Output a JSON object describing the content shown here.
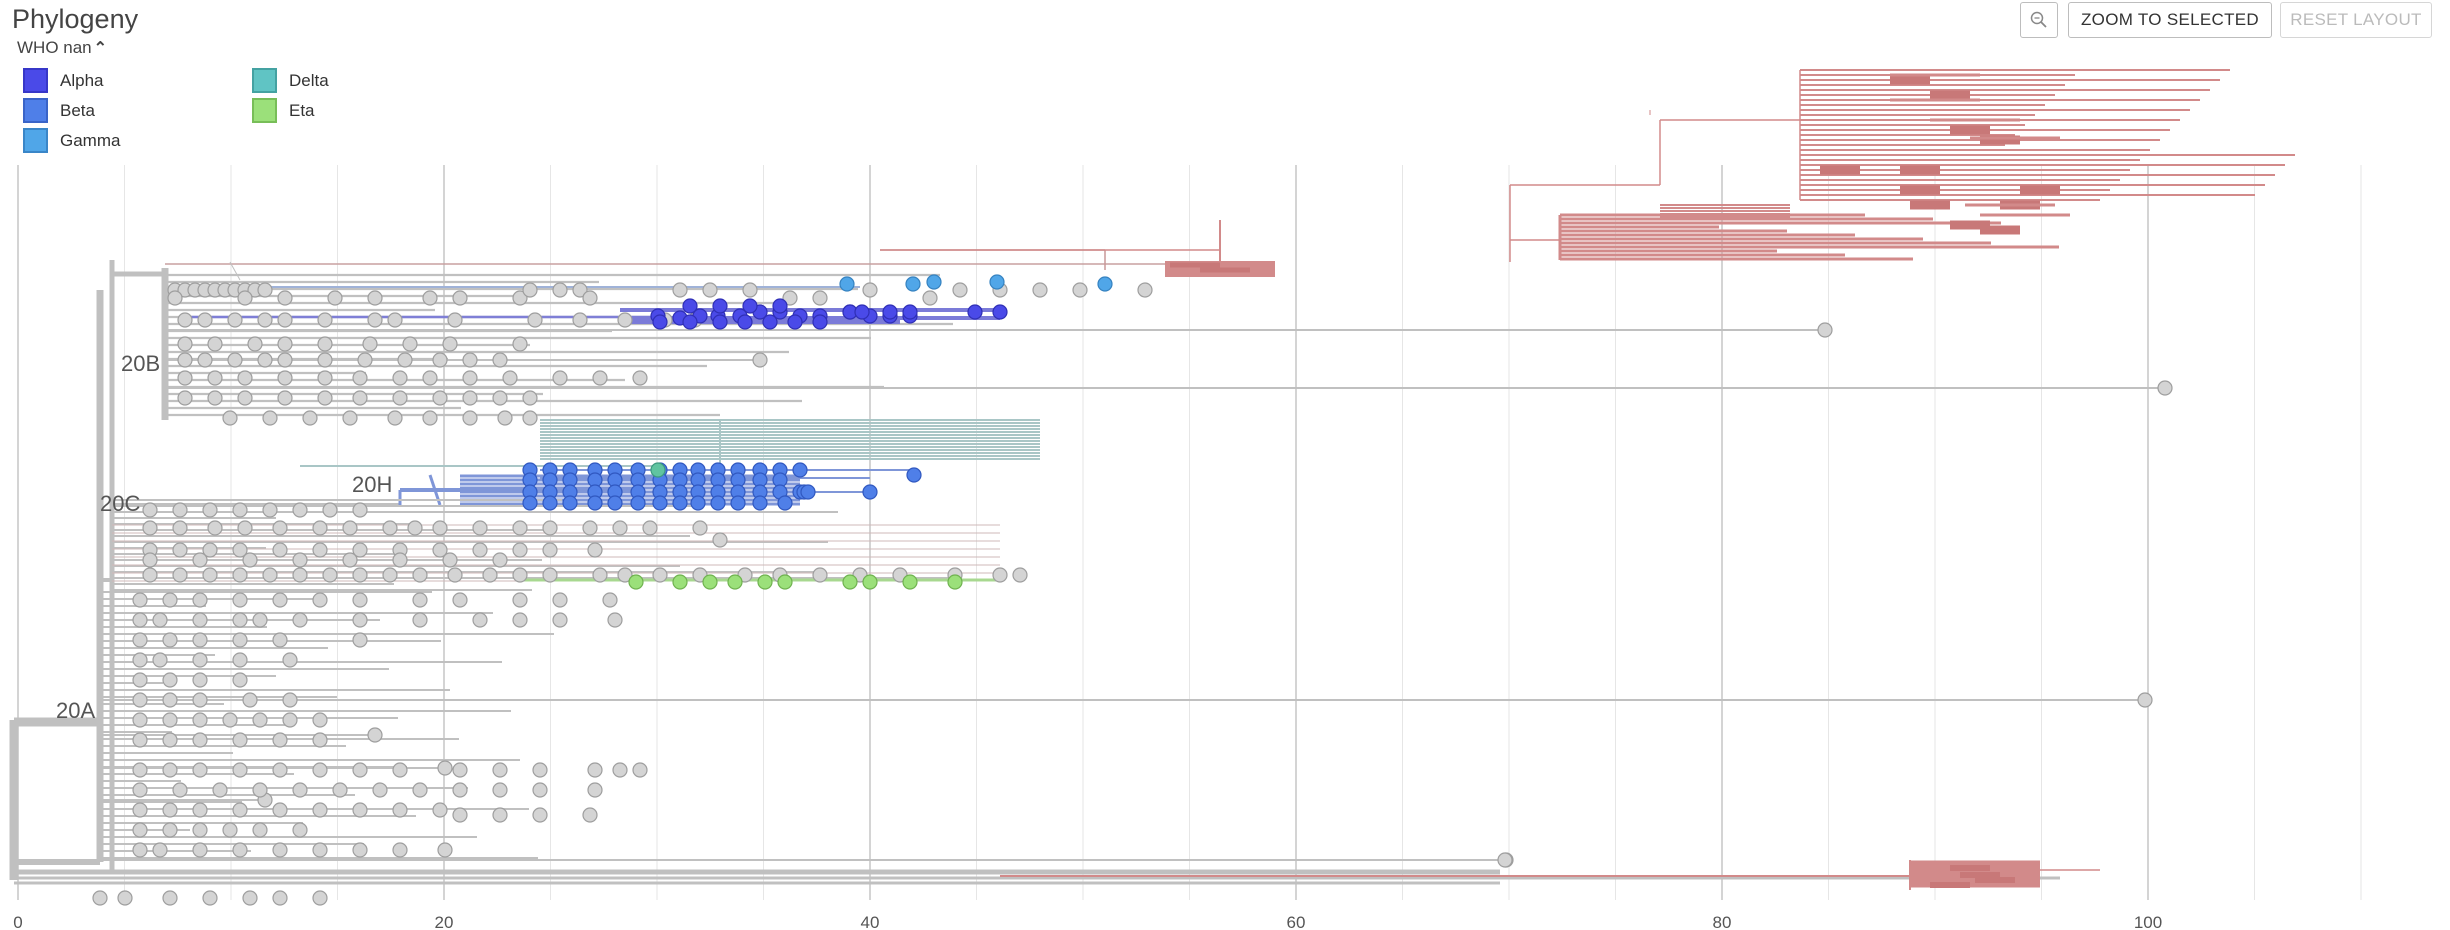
{
  "panel": {
    "title": "Phylogeny"
  },
  "legend": {
    "toggle_label": "WHO nan",
    "toggle_icon": "chevron-up-icon",
    "items": [
      {
        "label": "Alpha",
        "color": "#4a4ae8"
      },
      {
        "label": "Beta",
        "color": "#4f7fe8"
      },
      {
        "label": "Gamma",
        "color": "#50a6e8"
      },
      {
        "label": "Delta",
        "color": "#60c4c4"
      },
      {
        "label": "Eta",
        "color": "#9be07a"
      }
    ]
  },
  "toolbar": {
    "zoom_icon": "zoom-icon",
    "zoom_selected_label": "ZOOM TO SELECTED",
    "reset_layout_label": "RESET LAYOUT"
  },
  "clades": {
    "a": "20A",
    "b": "20B",
    "c": "20C",
    "h": "20H"
  },
  "axis": {
    "ticks": [
      0,
      20,
      40,
      60,
      80,
      100
    ],
    "max": 113
  },
  "colors": {
    "branch": "#c0c0c0",
    "tip": "#d4d4d4",
    "tip_stroke": "#9e9e9e",
    "red_branch": "#d28a8a",
    "teal_branch": "#a9c6c6",
    "grid": "#e6e6e6",
    "grid_major": "#c6c6c6"
  }
}
